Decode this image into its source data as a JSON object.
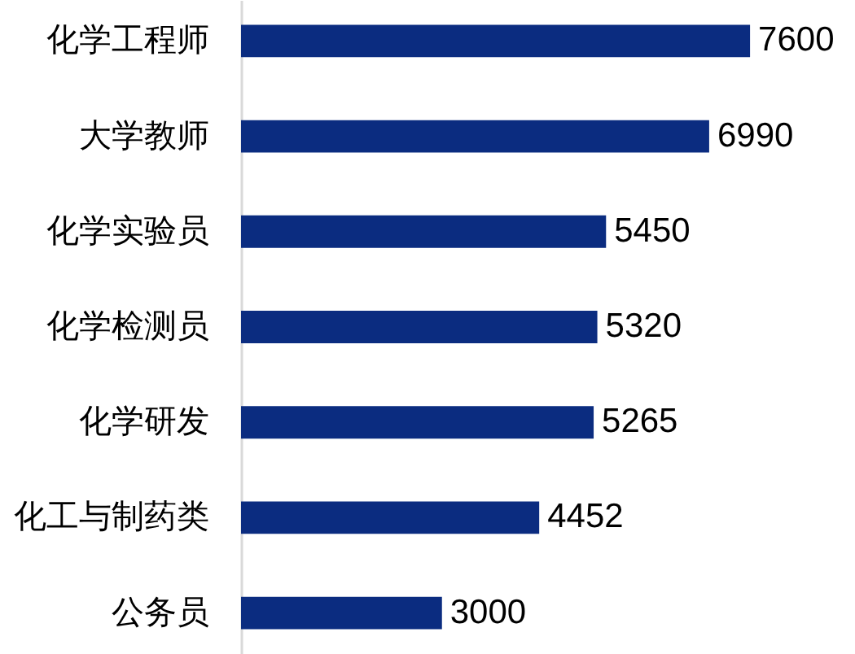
{
  "chart_data": {
    "type": "bar",
    "orientation": "horizontal",
    "categories": [
      "化学工程师",
      "大学教师",
      "化学实验员",
      "化学检测员",
      "化学研发",
      "化工与制药类",
      "公务员"
    ],
    "values": [
      7600,
      6990,
      5450,
      5320,
      5265,
      4452,
      3000
    ],
    "color": "#0b2c80",
    "data_labels": true,
    "tick_labels": "y"
  }
}
